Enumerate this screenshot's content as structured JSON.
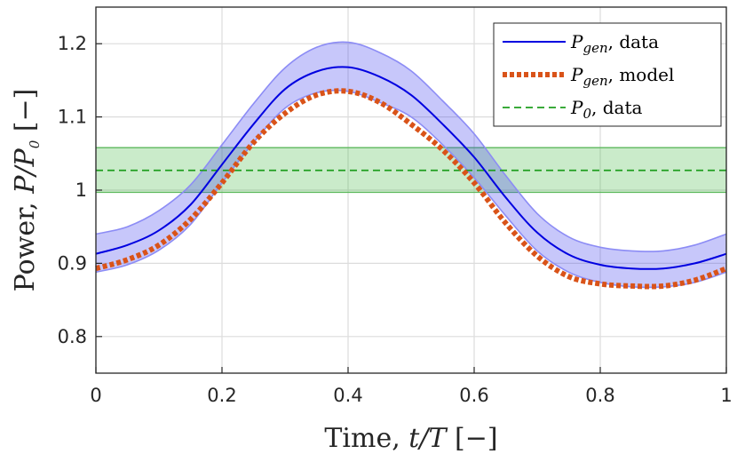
{
  "chart_data": {
    "type": "line",
    "xlabel": {
      "prefix": "Time, ",
      "italic": "t/T",
      "suffix": " [−]"
    },
    "ylabel": {
      "prefix": "Power, ",
      "italic": "P/P",
      "sub": "0",
      "suffix": " [−]"
    },
    "xlim": [
      0,
      1
    ],
    "ylim": [
      0.75,
      1.25
    ],
    "xticks": [
      0,
      0.2,
      0.4,
      0.6,
      0.8,
      1
    ],
    "xtick_labels": [
      "0",
      "0.2",
      "0.4",
      "0.6",
      "0.8",
      "1"
    ],
    "yticks": [
      0.8,
      0.9,
      1.0,
      1.1,
      1.2
    ],
    "ytick_labels": [
      "0.8",
      "0.9",
      "1",
      "1.1",
      "1.2"
    ],
    "grid": true,
    "legend_position": "top-right",
    "series": [
      {
        "name": "P_gen, data",
        "legend": {
          "symbol": "P",
          "sub": "gen",
          "text": ", data"
        },
        "style": "solid",
        "color": "#0000e0",
        "x": [
          0,
          0.05,
          0.1,
          0.15,
          0.2,
          0.25,
          0.3,
          0.35,
          0.4,
          0.45,
          0.5,
          0.55,
          0.6,
          0.65,
          0.7,
          0.75,
          0.8,
          0.85,
          0.9,
          0.95,
          1.0
        ],
        "values": [
          0.913,
          0.925,
          0.945,
          0.98,
          1.035,
          1.09,
          1.138,
          1.162,
          1.168,
          1.155,
          1.13,
          1.09,
          1.045,
          0.99,
          0.942,
          0.912,
          0.898,
          0.893,
          0.893,
          0.9,
          0.913
        ],
        "band_lower": [
          0.888,
          0.898,
          0.918,
          0.953,
          1.01,
          1.065,
          1.112,
          1.133,
          1.135,
          1.12,
          1.1,
          1.062,
          1.017,
          0.965,
          0.917,
          0.888,
          0.874,
          0.868,
          0.868,
          0.874,
          0.888
        ],
        "band_upper": [
          0.94,
          0.95,
          0.972,
          1.007,
          1.062,
          1.118,
          1.167,
          1.195,
          1.202,
          1.188,
          1.163,
          1.122,
          1.077,
          1.02,
          0.968,
          0.936,
          0.922,
          0.917,
          0.917,
          0.925,
          0.94
        ]
      },
      {
        "name": "P_gen, model",
        "legend": {
          "symbol": "P",
          "sub": "gen",
          "text": ", model"
        },
        "style": "dotted",
        "color": "#d95319",
        "x": [
          0,
          0.05,
          0.1,
          0.15,
          0.2,
          0.25,
          0.3,
          0.35,
          0.4,
          0.45,
          0.5,
          0.55,
          0.6,
          0.65,
          0.7,
          0.75,
          0.8,
          0.85,
          0.9,
          0.95,
          1.0
        ],
        "values": [
          0.893,
          0.905,
          0.925,
          0.96,
          1.01,
          1.065,
          1.105,
          1.13,
          1.135,
          1.12,
          1.09,
          1.055,
          1.01,
          0.955,
          0.91,
          0.882,
          0.872,
          0.869,
          0.869,
          0.877,
          0.893
        ]
      },
      {
        "name": "P_0, data",
        "legend": {
          "symbol": "P",
          "sub": "0",
          "text": ", data"
        },
        "style": "dashed",
        "color": "#1f9e1f",
        "x": [
          0,
          1
        ],
        "values": [
          1.027,
          1.027
        ],
        "band_lower": 0.997,
        "band_upper": 1.058
      }
    ]
  }
}
